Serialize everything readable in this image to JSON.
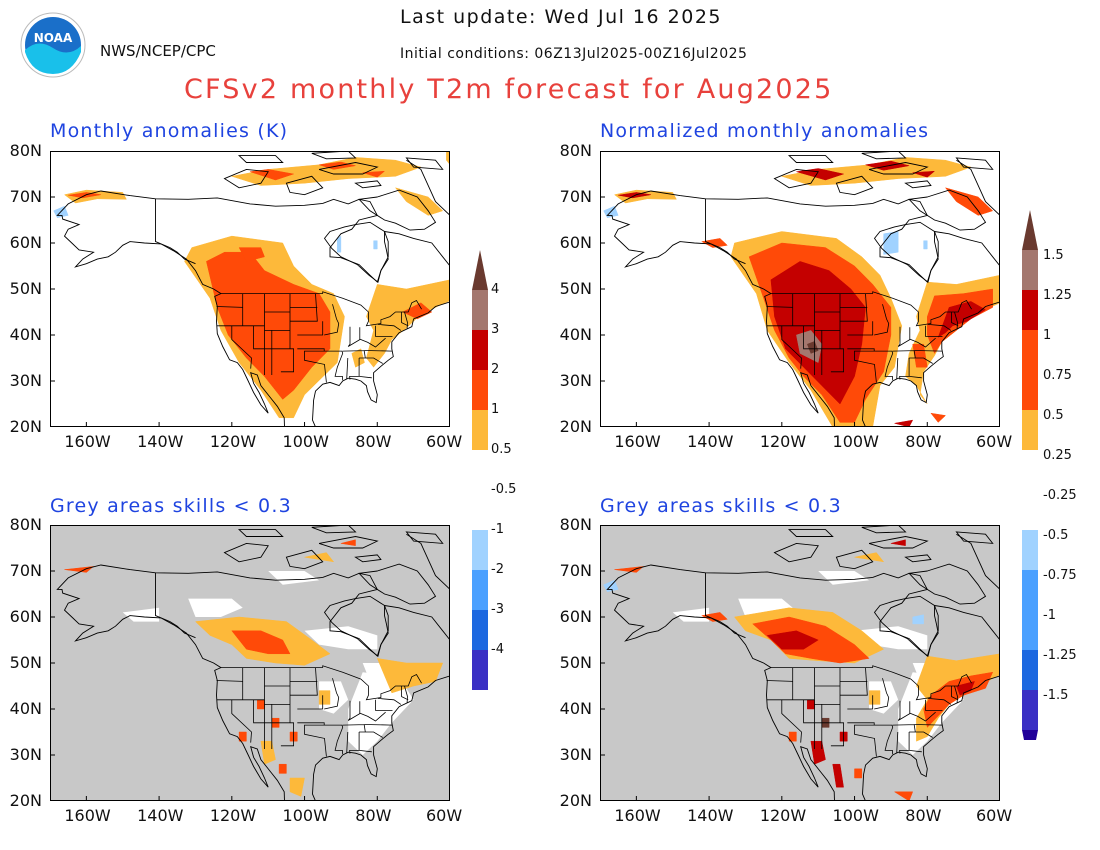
{
  "header": {
    "agency": "NWS/NCEP/CPC",
    "last_update": "Last update: Wed Jul 16 2025",
    "initial_conditions": "Initial conditions: 06Z13Jul2025-00Z16Jul2025",
    "title": "CFSv2 monthly T2m forecast for Aug2025"
  },
  "panels": [
    {
      "id": "top-left",
      "title": "Monthly anomalies (K)",
      "masked": false,
      "scale": "abs"
    },
    {
      "id": "top-right",
      "title": "Normalized monthly anomalies",
      "masked": false,
      "scale": "norm"
    },
    {
      "id": "bottom-left",
      "title": "Grey areas skills < 0.3",
      "masked": true,
      "scale": "abs"
    },
    {
      "id": "bottom-right",
      "title": "Grey areas skills < 0.3",
      "masked": true,
      "scale": "norm"
    }
  ],
  "lat_labels": [
    "80N",
    "70N",
    "60N",
    "50N",
    "40N",
    "30N",
    "20N"
  ],
  "lon_labels": [
    "160W",
    "140W",
    "120W",
    "100W",
    "80W",
    "60W"
  ],
  "colorbars": {
    "abs": {
      "labels": [
        "4",
        "3",
        "2",
        "1",
        "0.5",
        "-0.5",
        "-1",
        "-2",
        "-3",
        "-4"
      ]
    },
    "norm": {
      "labels": [
        "1.5",
        "1.25",
        "1",
        "0.75",
        "0.5",
        "0.25",
        "-0.25",
        "-0.5",
        "-0.75",
        "-1",
        "-1.25",
        "-1.5"
      ]
    }
  },
  "colors": {
    "title": "#e8413c",
    "panel_title": "#1f44e0",
    "mask_grey": "#c8c8c8",
    "warm": [
      "#fdb93a",
      "#ff4a08",
      "#c40000",
      "#a4776e",
      "#6a3a2f"
    ],
    "cold": [
      "#a0d2ff",
      "#4aa0ff",
      "#1c68e0",
      "#3a2fc4",
      "#20009a"
    ]
  }
}
